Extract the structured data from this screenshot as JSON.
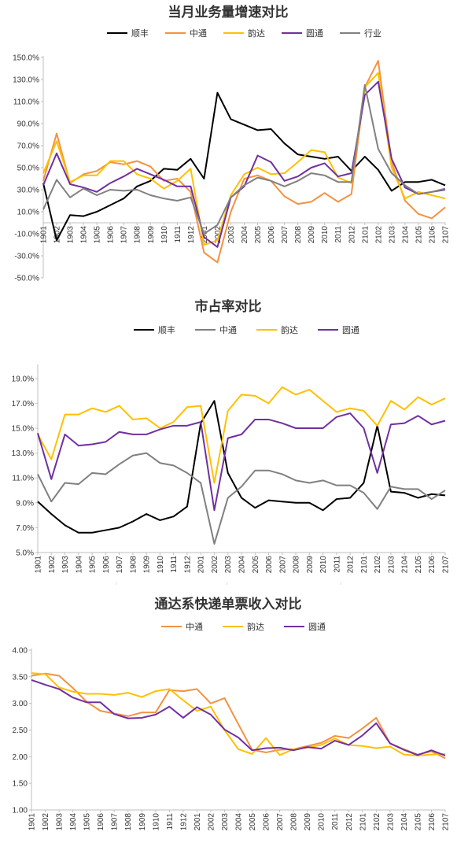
{
  "chart_data": [
    {
      "type": "line",
      "title": "当月业务量增速对比",
      "ylim": [
        -50,
        150
      ],
      "yticks": [
        "-50.0%",
        "-30.0%",
        "-10.0%",
        "10.0%",
        "30.0%",
        "50.0%",
        "70.0%",
        "90.0%",
        "110.0%",
        "130.0%",
        "150.0%"
      ],
      "ytick_values": [
        -50,
        -30,
        -10,
        10,
        30,
        50,
        70,
        90,
        110,
        130,
        150
      ],
      "categories": [
        "1901",
        "1902",
        "1903",
        "1904",
        "1905",
        "1906",
        "1907",
        "1908",
        "1909",
        "1910",
        "1911",
        "1912",
        "2001",
        "2002",
        "2003",
        "2004",
        "2005",
        "2006",
        "2007",
        "2008",
        "2009",
        "2010",
        "2011",
        "2012",
        "2101",
        "2102",
        "2103",
        "2104",
        "2105",
        "2106",
        "2107"
      ],
      "legend_position": "top",
      "series": [
        {
          "name": "顺丰",
          "color": "#000000",
          "values": [
            36,
            -16,
            7,
            6,
            10,
            16,
            22,
            33,
            38,
            49,
            48,
            58,
            40,
            118,
            94,
            89,
            84,
            85,
            72,
            62,
            60,
            58,
            60,
            47,
            60,
            48,
            29,
            37,
            37,
            39,
            34
          ]
        },
        {
          "name": "中通",
          "color": "#F39241",
          "values": [
            38,
            81,
            36,
            44,
            47,
            55,
            53,
            56,
            51,
            38,
            40,
            28,
            -27,
            -36,
            10,
            40,
            43,
            38,
            24,
            17,
            19,
            27,
            19,
            26,
            123,
            147,
            55,
            20,
            8,
            4,
            14
          ]
        },
        {
          "name": "韵达",
          "color": "#FFC000",
          "values": [
            45,
            74,
            37,
            43,
            43,
            56,
            56,
            44,
            40,
            31,
            38,
            49,
            -20,
            -16,
            25,
            44,
            50,
            44,
            45,
            55,
            66,
            64,
            41,
            36,
            123,
            136,
            50,
            22,
            28,
            25,
            22
          ]
        },
        {
          "name": "圆通",
          "color": "#7030A0",
          "values": [
            34,
            63,
            35,
            32,
            28,
            36,
            42,
            49,
            44,
            39,
            33,
            33,
            -13,
            -22,
            23,
            33,
            61,
            55,
            38,
            42,
            50,
            54,
            42,
            45,
            116,
            128,
            58,
            32,
            26,
            28,
            30
          ]
        },
        {
          "name": "行业",
          "color": "#808080",
          "values": [
            12,
            39,
            23,
            31,
            25,
            30,
            29,
            30,
            25,
            22,
            20,
            23,
            -10,
            -2,
            23,
            34,
            41,
            38,
            33,
            38,
            45,
            43,
            37,
            37,
            125,
            67,
            45,
            34,
            26,
            28,
            31
          ]
        }
      ]
    },
    {
      "type": "line",
      "title": "市占率对比",
      "ylim": [
        5,
        20
      ],
      "yticks": [
        "5.0%",
        "7.0%",
        "9.0%",
        "11.0%",
        "13.0%",
        "15.0%",
        "17.0%",
        "19.0%"
      ],
      "ytick_values": [
        5,
        7,
        9,
        11,
        13,
        15,
        17,
        19
      ],
      "categories": [
        "1901",
        "1902",
        "1903",
        "1904",
        "1905",
        "1906",
        "1907",
        "1908",
        "1909",
        "1910",
        "1911",
        "1912",
        "2001",
        "2002",
        "2003",
        "2004",
        "2005",
        "2006",
        "2007",
        "2008",
        "2009",
        "2010",
        "2011",
        "2012",
        "2101",
        "2102",
        "2103",
        "2104",
        "2105",
        "2106",
        "2107"
      ],
      "legend_position": "top",
      "series": [
        {
          "name": "顺丰",
          "color": "#000000",
          "values": [
            9.1,
            8.1,
            7.2,
            6.6,
            6.6,
            6.8,
            7.0,
            7.5,
            8.1,
            7.6,
            7.9,
            8.7,
            15.4,
            17.2,
            11.4,
            9.4,
            8.6,
            9.2,
            9.1,
            9.0,
            9.0,
            8.4,
            9.3,
            9.4,
            10.6,
            15.2,
            9.9,
            9.8,
            9.4,
            9.7,
            9.6
          ]
        },
        {
          "name": "中通",
          "color": "#808080",
          "values": [
            11.3,
            9.1,
            10.6,
            10.5,
            11.4,
            11.3,
            12.1,
            12.8,
            13.0,
            12.2,
            12.0,
            11.4,
            10.6,
            5.7,
            9.4,
            10.3,
            11.6,
            11.6,
            11.3,
            10.8,
            10.6,
            10.8,
            10.4,
            10.4,
            9.8,
            8.5,
            10.3,
            10.1,
            10.1,
            9.3,
            10.0
          ]
        },
        {
          "name": "韵达",
          "color": "#FFC000",
          "values": [
            14.5,
            12.5,
            16.1,
            16.1,
            16.6,
            16.3,
            16.8,
            15.7,
            15.8,
            15.0,
            15.5,
            16.7,
            16.8,
            10.6,
            16.4,
            17.7,
            17.6,
            17.0,
            18.3,
            17.7,
            18.1,
            17.2,
            16.3,
            16.6,
            16.4,
            15.2,
            17.2,
            16.5,
            17.5,
            16.9,
            17.4
          ]
        },
        {
          "name": "圆通",
          "color": "#7030A0",
          "values": [
            14.6,
            10.9,
            14.5,
            13.6,
            13.7,
            13.9,
            14.7,
            14.5,
            14.5,
            14.9,
            15.2,
            15.2,
            15.5,
            8.4,
            14.2,
            14.5,
            15.7,
            15.7,
            15.4,
            15.0,
            15.0,
            15.0,
            15.9,
            16.2,
            15.0,
            11.4,
            15.3,
            15.4,
            16.0,
            15.3,
            15.6
          ]
        }
      ]
    },
    {
      "type": "line",
      "title": "通达系快递单票收入对比",
      "ylim": [
        1.0,
        4.0
      ],
      "yticks": [
        "1.00",
        "1.50",
        "2.00",
        "2.50",
        "3.00",
        "3.50",
        "4.00"
      ],
      "ytick_values": [
        1.0,
        1.5,
        2.0,
        2.5,
        3.0,
        3.5,
        4.0
      ],
      "categories": [
        "1901",
        "1902",
        "1903",
        "1904",
        "1905",
        "1906",
        "1907",
        "1908",
        "1909",
        "1910",
        "1911",
        "1912",
        "2001",
        "2002",
        "2003",
        "2004",
        "2005",
        "2006",
        "2007",
        "2008",
        "2009",
        "2010",
        "2011",
        "2012",
        "2101",
        "2102",
        "2103",
        "2104",
        "2105",
        "2106",
        "2107"
      ],
      "legend_position": "top",
      "series": [
        {
          "name": "中通",
          "color": "#F39241",
          "values": [
            3.52,
            3.56,
            3.52,
            3.29,
            3.03,
            2.86,
            2.81,
            2.76,
            2.83,
            2.83,
            3.25,
            3.23,
            3.27,
            3.0,
            3.1,
            2.61,
            2.13,
            2.08,
            2.13,
            2.14,
            2.2,
            2.26,
            2.39,
            2.35,
            2.53,
            2.73,
            2.25,
            2.14,
            2.04,
            2.1,
            1.97
          ]
        },
        {
          "name": "韵达",
          "color": "#FFC000",
          "values": [
            3.57,
            3.55,
            3.3,
            3.22,
            3.18,
            3.18,
            3.16,
            3.2,
            3.12,
            3.23,
            3.27,
            3.06,
            2.86,
            2.94,
            2.5,
            2.14,
            2.05,
            2.35,
            2.03,
            2.14,
            2.17,
            2.22,
            2.34,
            2.22,
            2.2,
            2.16,
            2.19,
            2.04,
            2.02,
            2.04,
            2.05
          ]
        },
        {
          "name": "圆通",
          "color": "#7030A0",
          "values": [
            3.44,
            3.35,
            3.27,
            3.11,
            3.02,
            3.02,
            2.8,
            2.72,
            2.73,
            2.79,
            2.94,
            2.73,
            2.93,
            2.79,
            2.51,
            2.36,
            2.12,
            2.16,
            2.17,
            2.12,
            2.18,
            2.15,
            2.3,
            2.22,
            2.4,
            2.63,
            2.25,
            2.13,
            2.03,
            2.12,
            2.02
          ]
        }
      ]
    }
  ]
}
